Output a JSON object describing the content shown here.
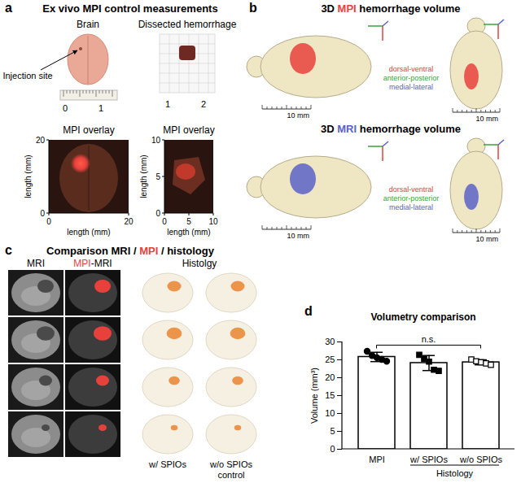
{
  "panels": {
    "a": {
      "letter": "a",
      "title": "Ex vivo MPI control measurements",
      "photos": [
        {
          "label": "Brain",
          "ruler": [
            "0",
            "1"
          ]
        },
        {
          "label": "Dissected hemorrhage",
          "ruler": [
            "1",
            "2"
          ]
        }
      ],
      "annotation": "Injection site",
      "overlays": [
        {
          "title": "MPI overlay",
          "xlabel": "length (mm)",
          "ylabel": "length (mm)",
          "xlim": [
            0,
            20
          ],
          "xticks": [
            0,
            20
          ],
          "ylim": [
            0,
            20
          ],
          "yticks": [
            0,
            20
          ]
        },
        {
          "title": "MPI overlay",
          "xlabel": "length (mm)",
          "ylabel": "length (mm)",
          "xlim": [
            0,
            10
          ],
          "xticks": [
            0,
            5,
            10
          ],
          "ylim": [
            0,
            10
          ],
          "yticks": [
            0,
            5,
            10
          ]
        }
      ]
    },
    "b": {
      "letter": "b",
      "views": [
        {
          "title": [
            "3D ",
            "MPI",
            " hemorrhage volume"
          ]
        },
        {
          "title": [
            "3D ",
            "MRI",
            " hemorrhage volume"
          ]
        }
      ],
      "axes": [
        "dorsal-ventral",
        "anterior-posterior",
        "medial-lateral"
      ],
      "scale_bar": "10 mm"
    },
    "c": {
      "letter": "c",
      "title": [
        "Comparison MRI / ",
        "MPI",
        " / histology"
      ],
      "columns": [
        [
          "MRI"
        ],
        [
          "",
          "MPI",
          "-MRI"
        ],
        [
          "Histolgy"
        ]
      ],
      "histology_labels": [
        [
          "w/ SPIOs"
        ],
        [
          "w/o SPIOs",
          "control"
        ]
      ]
    }
  },
  "chart_data": {
    "type": "bar",
    "letter": "d",
    "title": "Volumetry comparison",
    "ylabel": "Volume (mm³)",
    "categories": [
      "MPI",
      "w/ SPIOs",
      "w/o SPIOs"
    ],
    "values": [
      25.8,
      24.1,
      24.3
    ],
    "error": [
      1.3,
      2.1,
      0.7
    ],
    "points": [
      [
        27.4,
        26.2,
        25.6,
        25.1,
        24.6
      ],
      [
        26.4,
        25.3,
        24.5,
        22.2,
        21.9
      ],
      [
        25.1,
        24.6,
        24.3,
        24.0,
        23.6
      ]
    ],
    "marker": [
      "circle",
      "square",
      "square-open"
    ],
    "color": "#ffffff",
    "ylim": [
      0,
      30
    ],
    "yticks": [
      0,
      5,
      10,
      15,
      20,
      25,
      30
    ],
    "group": {
      "label": "Histology",
      "categories": [
        "w/ SPIOs",
        "w/o SPIOs"
      ]
    },
    "annotation": {
      "text": "n.s.",
      "from": "MPI",
      "to": "w/o SPIOs"
    }
  }
}
